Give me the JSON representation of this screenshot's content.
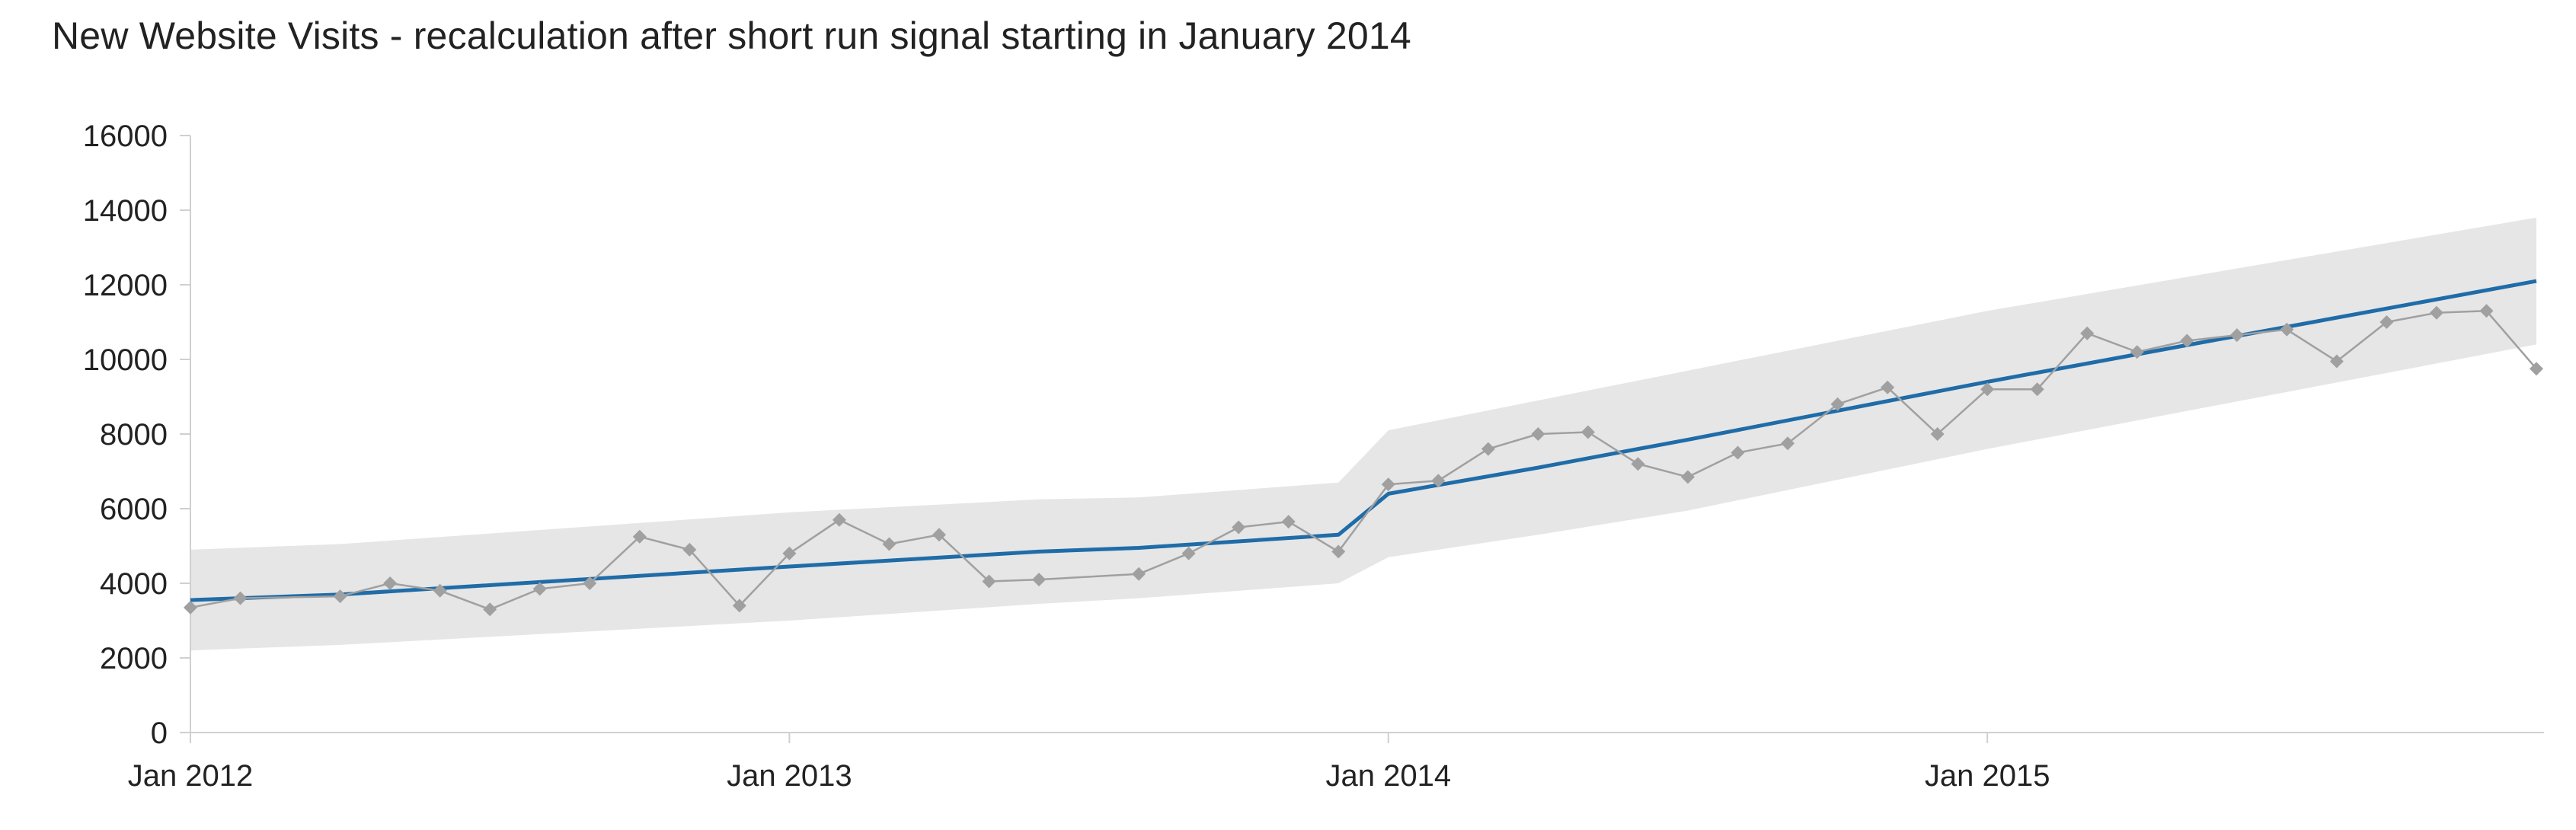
{
  "chart_data": {
    "type": "line",
    "title": "New Website Visits - recalculation after short run signal starting in January 2014",
    "xlabel": "",
    "ylabel": "",
    "ylim": [
      0,
      16000
    ],
    "y_ticks": [
      "0",
      "2000",
      "4000",
      "6000",
      "8000",
      "10000",
      "12000",
      "14000",
      "16000"
    ],
    "x_ticks": [
      "Jan 2012",
      "Jan 2013",
      "Jan 2014",
      "Jan 2015"
    ],
    "x_range_months": [
      "2012-01",
      "2015-12"
    ],
    "grid": false,
    "legend": "none",
    "colors": {
      "actual": "#a0a0a0",
      "center": "#1f6ca8",
      "band": "#e6e6e6",
      "axis": "#d0d0d0",
      "text": "#222222"
    },
    "series": [
      {
        "role": "actual",
        "marker": "diamond",
        "x": [
          "2012-01",
          "2012-02",
          "2012-04",
          "2012-05",
          "2012-06",
          "2012-07",
          "2012-08",
          "2012-09",
          "2012-10",
          "2012-11",
          "2012-12",
          "2013-01",
          "2013-02",
          "2013-03",
          "2013-04",
          "2013-05",
          "2013-06",
          "2013-08",
          "2013-09",
          "2013-10",
          "2013-11",
          "2013-12",
          "2014-01",
          "2014-02",
          "2014-03",
          "2014-04",
          "2014-05",
          "2014-06",
          "2014-07",
          "2014-08",
          "2014-09",
          "2014-10",
          "2014-11",
          "2014-12",
          "2015-01",
          "2015-02",
          "2015-03",
          "2015-04",
          "2015-05",
          "2015-06",
          "2015-07",
          "2015-08",
          "2015-09",
          "2015-10",
          "2015-11",
          "2015-12"
        ],
        "values": [
          3350,
          3600,
          3650,
          4000,
          3800,
          3300,
          3850,
          4000,
          5250,
          4900,
          3400,
          4800,
          5700,
          5050,
          5300,
          4050,
          4100,
          4250,
          4800,
          5500,
          5650,
          4850,
          6650,
          6750,
          7600,
          8000,
          8050,
          7200,
          6850,
          7500,
          7750,
          8800,
          9250,
          8000,
          9200,
          9200,
          10700,
          10200,
          10500,
          10650,
          10800,
          9950,
          11000,
          11250,
          11300,
          9750
        ]
      },
      {
        "role": "center",
        "x": [
          "2012-01",
          "2012-04",
          "2013-01",
          "2013-06",
          "2013-08",
          "2013-12",
          "2014-01",
          "2014-04",
          "2014-07",
          "2015-01",
          "2015-12"
        ],
        "values": [
          3550,
          3700,
          4450,
          4850,
          4950,
          5300,
          6400,
          7100,
          7850,
          9400,
          12100
        ]
      },
      {
        "role": "upper_limit",
        "x": [
          "2012-01",
          "2012-04",
          "2013-01",
          "2013-06",
          "2013-08",
          "2013-12",
          "2014-01",
          "2014-04",
          "2014-07",
          "2015-01",
          "2015-12"
        ],
        "values": [
          4900,
          5050,
          5900,
          6250,
          6300,
          6700,
          8100,
          8900,
          9700,
          11300,
          13800
        ]
      },
      {
        "role": "lower_limit",
        "x": [
          "2012-01",
          "2012-04",
          "2013-01",
          "2013-06",
          "2013-08",
          "2013-12",
          "2014-01",
          "2014-04",
          "2014-07",
          "2015-01",
          "2015-12"
        ],
        "values": [
          2200,
          2350,
          3000,
          3450,
          3600,
          4000,
          4700,
          5300,
          5950,
          7600,
          10400
        ]
      }
    ]
  }
}
